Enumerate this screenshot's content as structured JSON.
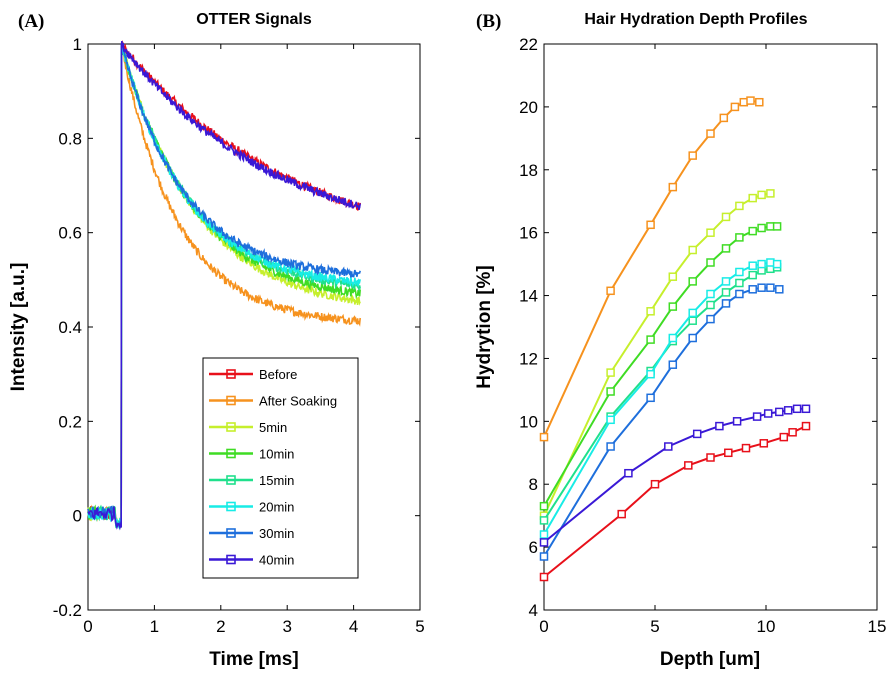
{
  "chart_data": [
    {
      "type": "line",
      "panel_label": "(A)",
      "title": "OTTER Signals",
      "xlabel": "Time [ms]",
      "ylabel": "Intensity [a.u.]",
      "xlim": [
        0,
        5
      ],
      "ylim": [
        -0.2,
        1
      ],
      "xticks": [
        "0",
        "1",
        "2",
        "3",
        "4",
        "5"
      ],
      "yticks": [
        "-0.2",
        "0",
        "0.2",
        "0.4",
        "0.6",
        "0.8",
        "1"
      ],
      "legend_position": "lower-right",
      "x_range": [
        0,
        4.1
      ],
      "pulse_time": 0.5,
      "series": [
        {
          "name": "Before",
          "color": "#e8101a",
          "final": 0.54,
          "tau": 2.6
        },
        {
          "name": "After Soaking",
          "color": "#f6921e",
          "final": 0.405,
          "tau": 0.85
        },
        {
          "name": "5min",
          "color": "#c6ef2c",
          "final": 0.43,
          "tau": 1.15
        },
        {
          "name": "10min",
          "color": "#3fdc24",
          "final": 0.45,
          "tau": 1.1
        },
        {
          "name": "15min",
          "color": "#1fe08c",
          "final": 0.47,
          "tau": 1.05
        },
        {
          "name": "20min",
          "color": "#18ece6",
          "final": 0.48,
          "tau": 1.0
        },
        {
          "name": "30min",
          "color": "#1e6fdc",
          "final": 0.5,
          "tau": 0.95
        },
        {
          "name": "40min",
          "color": "#3a19d6",
          "final": 0.565,
          "tau": 2.3
        }
      ]
    },
    {
      "type": "line",
      "panel_label": "(B)",
      "title": "Hair Hydration Depth Profiles",
      "xlabel": "Depth [um]",
      "ylabel": "Hydrytion [%]",
      "xlim": [
        0,
        15
      ],
      "ylim": [
        4,
        22
      ],
      "xticks": [
        "0",
        "5",
        "10",
        "15"
      ],
      "yticks": [
        "4",
        "6",
        "8",
        "10",
        "12",
        "14",
        "16",
        "18",
        "20",
        "22"
      ],
      "series": [
        {
          "name": "Before",
          "color": "#e8101a",
          "x": [
            0,
            3.5,
            5,
            6.5,
            7.5,
            8.3,
            9.1,
            9.9,
            10.8,
            11.2,
            11.8
          ],
          "y": [
            5.05,
            7.05,
            8.0,
            8.6,
            8.85,
            9.0,
            9.15,
            9.3,
            9.5,
            9.65,
            9.85
          ]
        },
        {
          "name": "After Soaking",
          "color": "#f6921e",
          "x": [
            0,
            3.0,
            4.8,
            5.8,
            6.7,
            7.5,
            8.1,
            8.6,
            9.0,
            9.3,
            9.7
          ],
          "y": [
            9.5,
            14.15,
            16.25,
            17.45,
            18.45,
            19.15,
            19.65,
            20.0,
            20.15,
            20.2,
            20.15
          ]
        },
        {
          "name": "5min",
          "color": "#c6ef2c",
          "x": [
            0,
            3.0,
            4.8,
            5.8,
            6.7,
            7.5,
            8.2,
            8.8,
            9.4,
            9.8,
            10.2
          ],
          "y": [
            7.0,
            11.55,
            13.5,
            14.6,
            15.45,
            16.0,
            16.5,
            16.85,
            17.1,
            17.2,
            17.25
          ]
        },
        {
          "name": "10min",
          "color": "#3fdc24",
          "x": [
            0,
            3.0,
            4.8,
            5.8,
            6.7,
            7.5,
            8.2,
            8.8,
            9.4,
            9.8,
            10.2,
            10.5
          ],
          "y": [
            7.3,
            10.95,
            12.6,
            13.65,
            14.45,
            15.05,
            15.5,
            15.85,
            16.05,
            16.15,
            16.2,
            16.2
          ]
        },
        {
          "name": "15min",
          "color": "#1fe08c",
          "x": [
            0,
            3.0,
            4.8,
            5.8,
            6.7,
            7.5,
            8.2,
            8.8,
            9.4,
            9.8,
            10.2,
            10.5
          ],
          "y": [
            6.85,
            10.15,
            11.6,
            12.55,
            13.2,
            13.7,
            14.1,
            14.4,
            14.65,
            14.8,
            14.85,
            14.9
          ]
        },
        {
          "name": "20min",
          "color": "#18ece6",
          "x": [
            0,
            3.0,
            4.8,
            5.8,
            6.7,
            7.5,
            8.2,
            8.8,
            9.4,
            9.8,
            10.2,
            10.5
          ],
          "y": [
            6.4,
            10.05,
            11.5,
            12.65,
            13.45,
            14.05,
            14.45,
            14.75,
            14.95,
            15.0,
            15.05,
            15.0
          ]
        },
        {
          "name": "30min",
          "color": "#1e6fdc",
          "x": [
            0,
            3.0,
            4.8,
            5.8,
            6.7,
            7.5,
            8.2,
            8.8,
            9.4,
            9.8,
            10.2,
            10.6
          ],
          "y": [
            5.7,
            9.2,
            10.75,
            11.8,
            12.65,
            13.25,
            13.75,
            14.05,
            14.2,
            14.25,
            14.25,
            14.2
          ]
        },
        {
          "name": "40min",
          "color": "#3a19d6",
          "x": [
            0,
            3.8,
            5.6,
            6.9,
            7.9,
            8.7,
            9.6,
            10.1,
            10.6,
            11.0,
            11.4,
            11.8
          ],
          "y": [
            6.15,
            8.35,
            9.2,
            9.6,
            9.85,
            10.0,
            10.15,
            10.25,
            10.3,
            10.35,
            10.4,
            10.4
          ]
        }
      ]
    }
  ]
}
